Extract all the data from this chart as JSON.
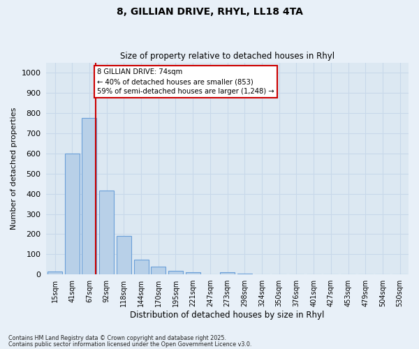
{
  "title_line1": "8, GILLIAN DRIVE, RHYL, LL18 4TA",
  "title_line2": "Size of property relative to detached houses in Rhyl",
  "xlabel": "Distribution of detached houses by size in Rhyl",
  "ylabel": "Number of detached properties",
  "bar_color": "#b8d0e8",
  "bar_edge_color": "#6a9fd8",
  "categories": [
    "15sqm",
    "41sqm",
    "67sqm",
    "92sqm",
    "118sqm",
    "144sqm",
    "170sqm",
    "195sqm",
    "221sqm",
    "247sqm",
    "273sqm",
    "298sqm",
    "324sqm",
    "350sqm",
    "376sqm",
    "401sqm",
    "427sqm",
    "453sqm",
    "479sqm",
    "504sqm",
    "530sqm"
  ],
  "values": [
    15,
    600,
    775,
    415,
    190,
    75,
    38,
    20,
    13,
    0,
    13,
    5,
    0,
    0,
    0,
    0,
    0,
    0,
    0,
    0,
    0
  ],
  "vline_color": "#cc0000",
  "vline_x": 2.35,
  "ylim_max": 1050,
  "yticks": [
    0,
    100,
    200,
    300,
    400,
    500,
    600,
    700,
    800,
    900,
    1000
  ],
  "annotation_text": "8 GILLIAN DRIVE: 74sqm\n← 40% of detached houses are smaller (853)\n59% of semi-detached houses are larger (1,248) →",
  "annotation_box_facecolor": "#ffffff",
  "annotation_box_edgecolor": "#cc0000",
  "grid_color": "#c8d8ea",
  "plot_bg_color": "#dce8f2",
  "fig_bg_color": "#e8f0f8",
  "footer_line1": "Contains HM Land Registry data © Crown copyright and database right 2025.",
  "footer_line2": "Contains public sector information licensed under the Open Government Licence v3.0."
}
